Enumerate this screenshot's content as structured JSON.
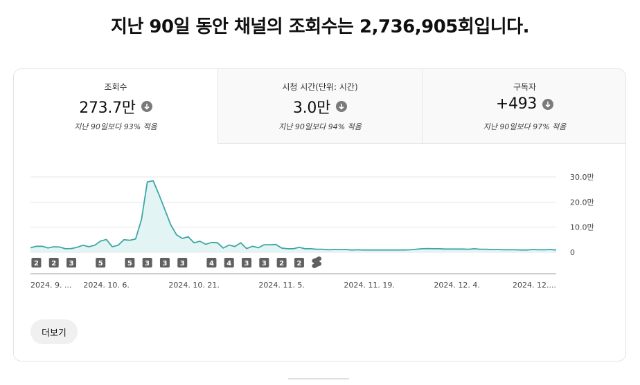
{
  "headline": "지난 90일 동안 채널의 조회수는 2,736,905회입니다.",
  "metrics": [
    {
      "label": "조회수",
      "value": "273.7만",
      "compare": "지난 90일보다 93% 적음",
      "active": true
    },
    {
      "label": "시청 시간(단위: 시간)",
      "value": "3.0만",
      "compare": "지난 90일보다 94% 적음",
      "active": false
    },
    {
      "label": "구독자",
      "value": "+493",
      "compare": "지난 90일보다 97% 적음",
      "active": false
    }
  ],
  "more_button": "더보기",
  "colors": {
    "line": "#3ea6a6",
    "fill": "#e3f4f4",
    "marker": "#606060"
  },
  "chart_data": {
    "type": "area",
    "series": [
      {
        "values": [
          18000,
          24000,
          24000,
          17000,
          22000,
          21000,
          14000,
          15000,
          20000,
          28000,
          22000,
          28000,
          45000,
          51000,
          22000,
          28000,
          50000,
          48000,
          53000,
          130000,
          280000,
          285000,
          230000,
          170000,
          110000,
          70000,
          55000,
          62000,
          38000,
          44000,
          32000,
          39000,
          38000,
          17000,
          29000,
          23000,
          38000,
          15000,
          24000,
          18000,
          30000,
          30000,
          31000,
          17000,
          14000,
          14000,
          20000,
          14000,
          14000,
          12000,
          12000,
          10000,
          11000,
          11000,
          11000,
          9000,
          10000,
          9000,
          9000,
          9000,
          9000,
          9000,
          9000,
          9000,
          9000,
          10000,
          12000,
          14000,
          15000,
          14000,
          14000,
          13000,
          13000,
          13000,
          13000,
          12000,
          14000,
          12000,
          12000,
          11000,
          11000,
          10000,
          10000,
          10000,
          9000,
          9000,
          11000,
          10000,
          10000,
          11000,
          9000
        ]
      }
    ],
    "y_ticks": [
      "30.0만",
      "20.0만",
      "10.0만",
      "0"
    ],
    "y_tick_values": [
      300000,
      200000,
      100000,
      0
    ],
    "ylim": [
      0,
      300000
    ],
    "x_labels": [
      "2024. 9. ...",
      "2024. 10. 6.",
      "2024. 10. 21.",
      "2024. 11. 5.",
      "2024. 11. 19.",
      "2024. 12. 4.",
      "2024. 12...."
    ],
    "x_label_index": [
      0,
      13,
      28,
      43,
      58,
      73,
      88
    ],
    "markers": [
      {
        "index": 1,
        "label": "2"
      },
      {
        "index": 4,
        "label": "2"
      },
      {
        "index": 7,
        "label": "3"
      },
      {
        "index": 12,
        "label": "5"
      },
      {
        "index": 17,
        "label": "5"
      },
      {
        "index": 20,
        "label": "3"
      },
      {
        "index": 23,
        "label": "3"
      },
      {
        "index": 26,
        "label": "3"
      },
      {
        "index": 31,
        "label": "4"
      },
      {
        "index": 34,
        "label": "4"
      },
      {
        "index": 37,
        "label": "3"
      },
      {
        "index": 40,
        "label": "3"
      },
      {
        "index": 43,
        "label": "2"
      },
      {
        "index": 46,
        "label": "2"
      },
      {
        "index": 49,
        "label": "shorts"
      }
    ],
    "grid": true
  }
}
